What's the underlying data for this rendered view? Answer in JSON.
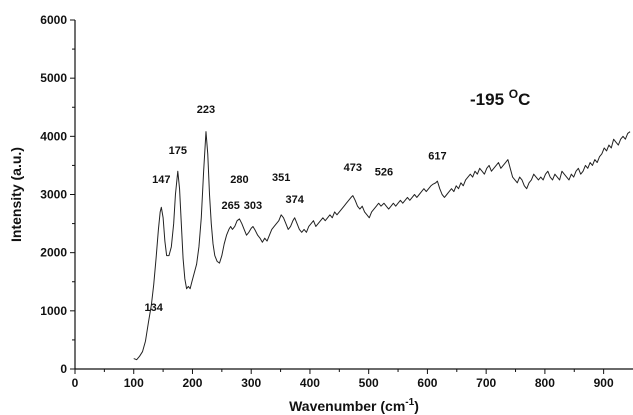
{
  "chart_data": {
    "type": "line",
    "title": "",
    "xlabel": "Wavenumber (cm",
    "xlabel_sup": "-1",
    "xlabel_end": ")",
    "ylabel": "Intensity (a.u.)",
    "xlim": [
      0,
      950
    ],
    "ylim": [
      0,
      6000
    ],
    "xticks": [
      0,
      100,
      200,
      300,
      400,
      500,
      600,
      700,
      800,
      900
    ],
    "yticks": [
      0,
      1000,
      2000,
      3000,
      4000,
      5000,
      6000
    ],
    "grid": false,
    "annotation": {
      "main": "-195 ",
      "sup": "O",
      "end": "C"
    },
    "peaks": [
      {
        "label": "134",
        "x": 134,
        "y": 1000
      },
      {
        "label": "147",
        "x": 147,
        "y": 3200
      },
      {
        "label": "175",
        "x": 175,
        "y": 3700
      },
      {
        "label": "223",
        "x": 223,
        "y": 4400
      },
      {
        "label": "265",
        "x": 265,
        "y": 2750
      },
      {
        "label": "280",
        "x": 280,
        "y": 3200
      },
      {
        "label": "303",
        "x": 303,
        "y": 2750
      },
      {
        "label": "351",
        "x": 351,
        "y": 3230
      },
      {
        "label": "374",
        "x": 374,
        "y": 2850
      },
      {
        "label": "473",
        "x": 473,
        "y": 3400
      },
      {
        "label": "526",
        "x": 526,
        "y": 3330
      },
      {
        "label": "617",
        "x": 617,
        "y": 3600
      }
    ],
    "series": [
      {
        "points": [
          [
            100,
            180
          ],
          [
            105,
            160
          ],
          [
            110,
            220
          ],
          [
            115,
            300
          ],
          [
            120,
            480
          ],
          [
            125,
            800
          ],
          [
            130,
            1100
          ],
          [
            134,
            1450
          ],
          [
            138,
            1900
          ],
          [
            142,
            2400
          ],
          [
            145,
            2700
          ],
          [
            147,
            2780
          ],
          [
            150,
            2600
          ],
          [
            153,
            2200
          ],
          [
            156,
            1950
          ],
          [
            160,
            1950
          ],
          [
            164,
            2100
          ],
          [
            168,
            2500
          ],
          [
            171,
            3000
          ],
          [
            175,
            3400
          ],
          [
            178,
            3100
          ],
          [
            181,
            2500
          ],
          [
            184,
            1900
          ],
          [
            187,
            1550
          ],
          [
            190,
            1380
          ],
          [
            193,
            1420
          ],
          [
            196,
            1380
          ],
          [
            199,
            1500
          ],
          [
            203,
            1650
          ],
          [
            207,
            1800
          ],
          [
            211,
            2100
          ],
          [
            215,
            2600
          ],
          [
            219,
            3400
          ],
          [
            223,
            4080
          ],
          [
            226,
            3700
          ],
          [
            229,
            3000
          ],
          [
            232,
            2500
          ],
          [
            235,
            2150
          ],
          [
            238,
            1950
          ],
          [
            242,
            1850
          ],
          [
            246,
            1820
          ],
          [
            250,
            1950
          ],
          [
            254,
            2150
          ],
          [
            258,
            2300
          ],
          [
            262,
            2400
          ],
          [
            265,
            2450
          ],
          [
            268,
            2400
          ],
          [
            272,
            2450
          ],
          [
            276,
            2550
          ],
          [
            280,
            2580
          ],
          [
            284,
            2500
          ],
          [
            288,
            2400
          ],
          [
            292,
            2300
          ],
          [
            296,
            2350
          ],
          [
            300,
            2420
          ],
          [
            303,
            2450
          ],
          [
            307,
            2380
          ],
          [
            311,
            2300
          ],
          [
            315,
            2250
          ],
          [
            319,
            2180
          ],
          [
            323,
            2250
          ],
          [
            327,
            2200
          ],
          [
            331,
            2300
          ],
          [
            335,
            2400
          ],
          [
            339,
            2450
          ],
          [
            343,
            2500
          ],
          [
            347,
            2550
          ],
          [
            351,
            2650
          ],
          [
            355,
            2600
          ],
          [
            359,
            2500
          ],
          [
            363,
            2400
          ],
          [
            367,
            2450
          ],
          [
            371,
            2550
          ],
          [
            374,
            2600
          ],
          [
            378,
            2500
          ],
          [
            382,
            2400
          ],
          [
            386,
            2350
          ],
          [
            390,
            2400
          ],
          [
            394,
            2350
          ],
          [
            398,
            2450
          ],
          [
            402,
            2500
          ],
          [
            406,
            2550
          ],
          [
            410,
            2450
          ],
          [
            414,
            2500
          ],
          [
            418,
            2550
          ],
          [
            422,
            2600
          ],
          [
            426,
            2550
          ],
          [
            430,
            2600
          ],
          [
            434,
            2650
          ],
          [
            438,
            2600
          ],
          [
            442,
            2700
          ],
          [
            446,
            2650
          ],
          [
            450,
            2700
          ],
          [
            454,
            2750
          ],
          [
            458,
            2800
          ],
          [
            462,
            2850
          ],
          [
            466,
            2900
          ],
          [
            470,
            2950
          ],
          [
            473,
            2980
          ],
          [
            477,
            2900
          ],
          [
            481,
            2800
          ],
          [
            485,
            2750
          ],
          [
            489,
            2800
          ],
          [
            493,
            2700
          ],
          [
            497,
            2650
          ],
          [
            501,
            2600
          ],
          [
            505,
            2700
          ],
          [
            509,
            2750
          ],
          [
            513,
            2800
          ],
          [
            517,
            2850
          ],
          [
            521,
            2800
          ],
          [
            526,
            2850
          ],
          [
            530,
            2800
          ],
          [
            534,
            2750
          ],
          [
            538,
            2800
          ],
          [
            542,
            2850
          ],
          [
            546,
            2800
          ],
          [
            550,
            2850
          ],
          [
            554,
            2900
          ],
          [
            558,
            2850
          ],
          [
            562,
            2900
          ],
          [
            566,
            2950
          ],
          [
            570,
            2900
          ],
          [
            574,
            2950
          ],
          [
            578,
            3000
          ],
          [
            582,
            2950
          ],
          [
            586,
            3000
          ],
          [
            590,
            3050
          ],
          [
            594,
            3100
          ],
          [
            598,
            3050
          ],
          [
            602,
            3100
          ],
          [
            606,
            3150
          ],
          [
            610,
            3180
          ],
          [
            614,
            3200
          ],
          [
            617,
            3230
          ],
          [
            621,
            3100
          ],
          [
            625,
            3000
          ],
          [
            629,
            2950
          ],
          [
            633,
            3000
          ],
          [
            637,
            3050
          ],
          [
            641,
            3100
          ],
          [
            645,
            3050
          ],
          [
            649,
            3150
          ],
          [
            653,
            3100
          ],
          [
            657,
            3200
          ],
          [
            661,
            3150
          ],
          [
            665,
            3250
          ],
          [
            669,
            3300
          ],
          [
            673,
            3350
          ],
          [
            677,
            3300
          ],
          [
            681,
            3400
          ],
          [
            685,
            3350
          ],
          [
            689,
            3450
          ],
          [
            693,
            3400
          ],
          [
            697,
            3350
          ],
          [
            701,
            3450
          ],
          [
            705,
            3500
          ],
          [
            709,
            3400
          ],
          [
            713,
            3450
          ],
          [
            717,
            3500
          ],
          [
            721,
            3550
          ],
          [
            725,
            3450
          ],
          [
            729,
            3500
          ],
          [
            733,
            3550
          ],
          [
            737,
            3600
          ],
          [
            741,
            3450
          ],
          [
            745,
            3300
          ],
          [
            749,
            3250
          ],
          [
            753,
            3200
          ],
          [
            757,
            3300
          ],
          [
            761,
            3250
          ],
          [
            765,
            3150
          ],
          [
            769,
            3100
          ],
          [
            773,
            3200
          ],
          [
            777,
            3250
          ],
          [
            781,
            3350
          ],
          [
            785,
            3300
          ],
          [
            789,
            3250
          ],
          [
            793,
            3300
          ],
          [
            797,
            3250
          ],
          [
            801,
            3350
          ],
          [
            805,
            3400
          ],
          [
            809,
            3300
          ],
          [
            813,
            3250
          ],
          [
            817,
            3350
          ],
          [
            821,
            3300
          ],
          [
            825,
            3250
          ],
          [
            829,
            3400
          ],
          [
            833,
            3350
          ],
          [
            837,
            3300
          ],
          [
            841,
            3250
          ],
          [
            845,
            3350
          ],
          [
            849,
            3300
          ],
          [
            853,
            3400
          ],
          [
            857,
            3450
          ],
          [
            861,
            3350
          ],
          [
            865,
            3400
          ],
          [
            869,
            3500
          ],
          [
            873,
            3450
          ],
          [
            877,
            3550
          ],
          [
            881,
            3500
          ],
          [
            885,
            3600
          ],
          [
            889,
            3550
          ],
          [
            893,
            3650
          ],
          [
            897,
            3700
          ],
          [
            901,
            3800
          ],
          [
            905,
            3750
          ],
          [
            909,
            3850
          ],
          [
            913,
            3800
          ],
          [
            917,
            3950
          ],
          [
            921,
            3900
          ],
          [
            925,
            3850
          ],
          [
            929,
            3950
          ],
          [
            933,
            4000
          ],
          [
            937,
            3950
          ],
          [
            941,
            4050
          ],
          [
            945,
            4080
          ]
        ]
      }
    ]
  }
}
